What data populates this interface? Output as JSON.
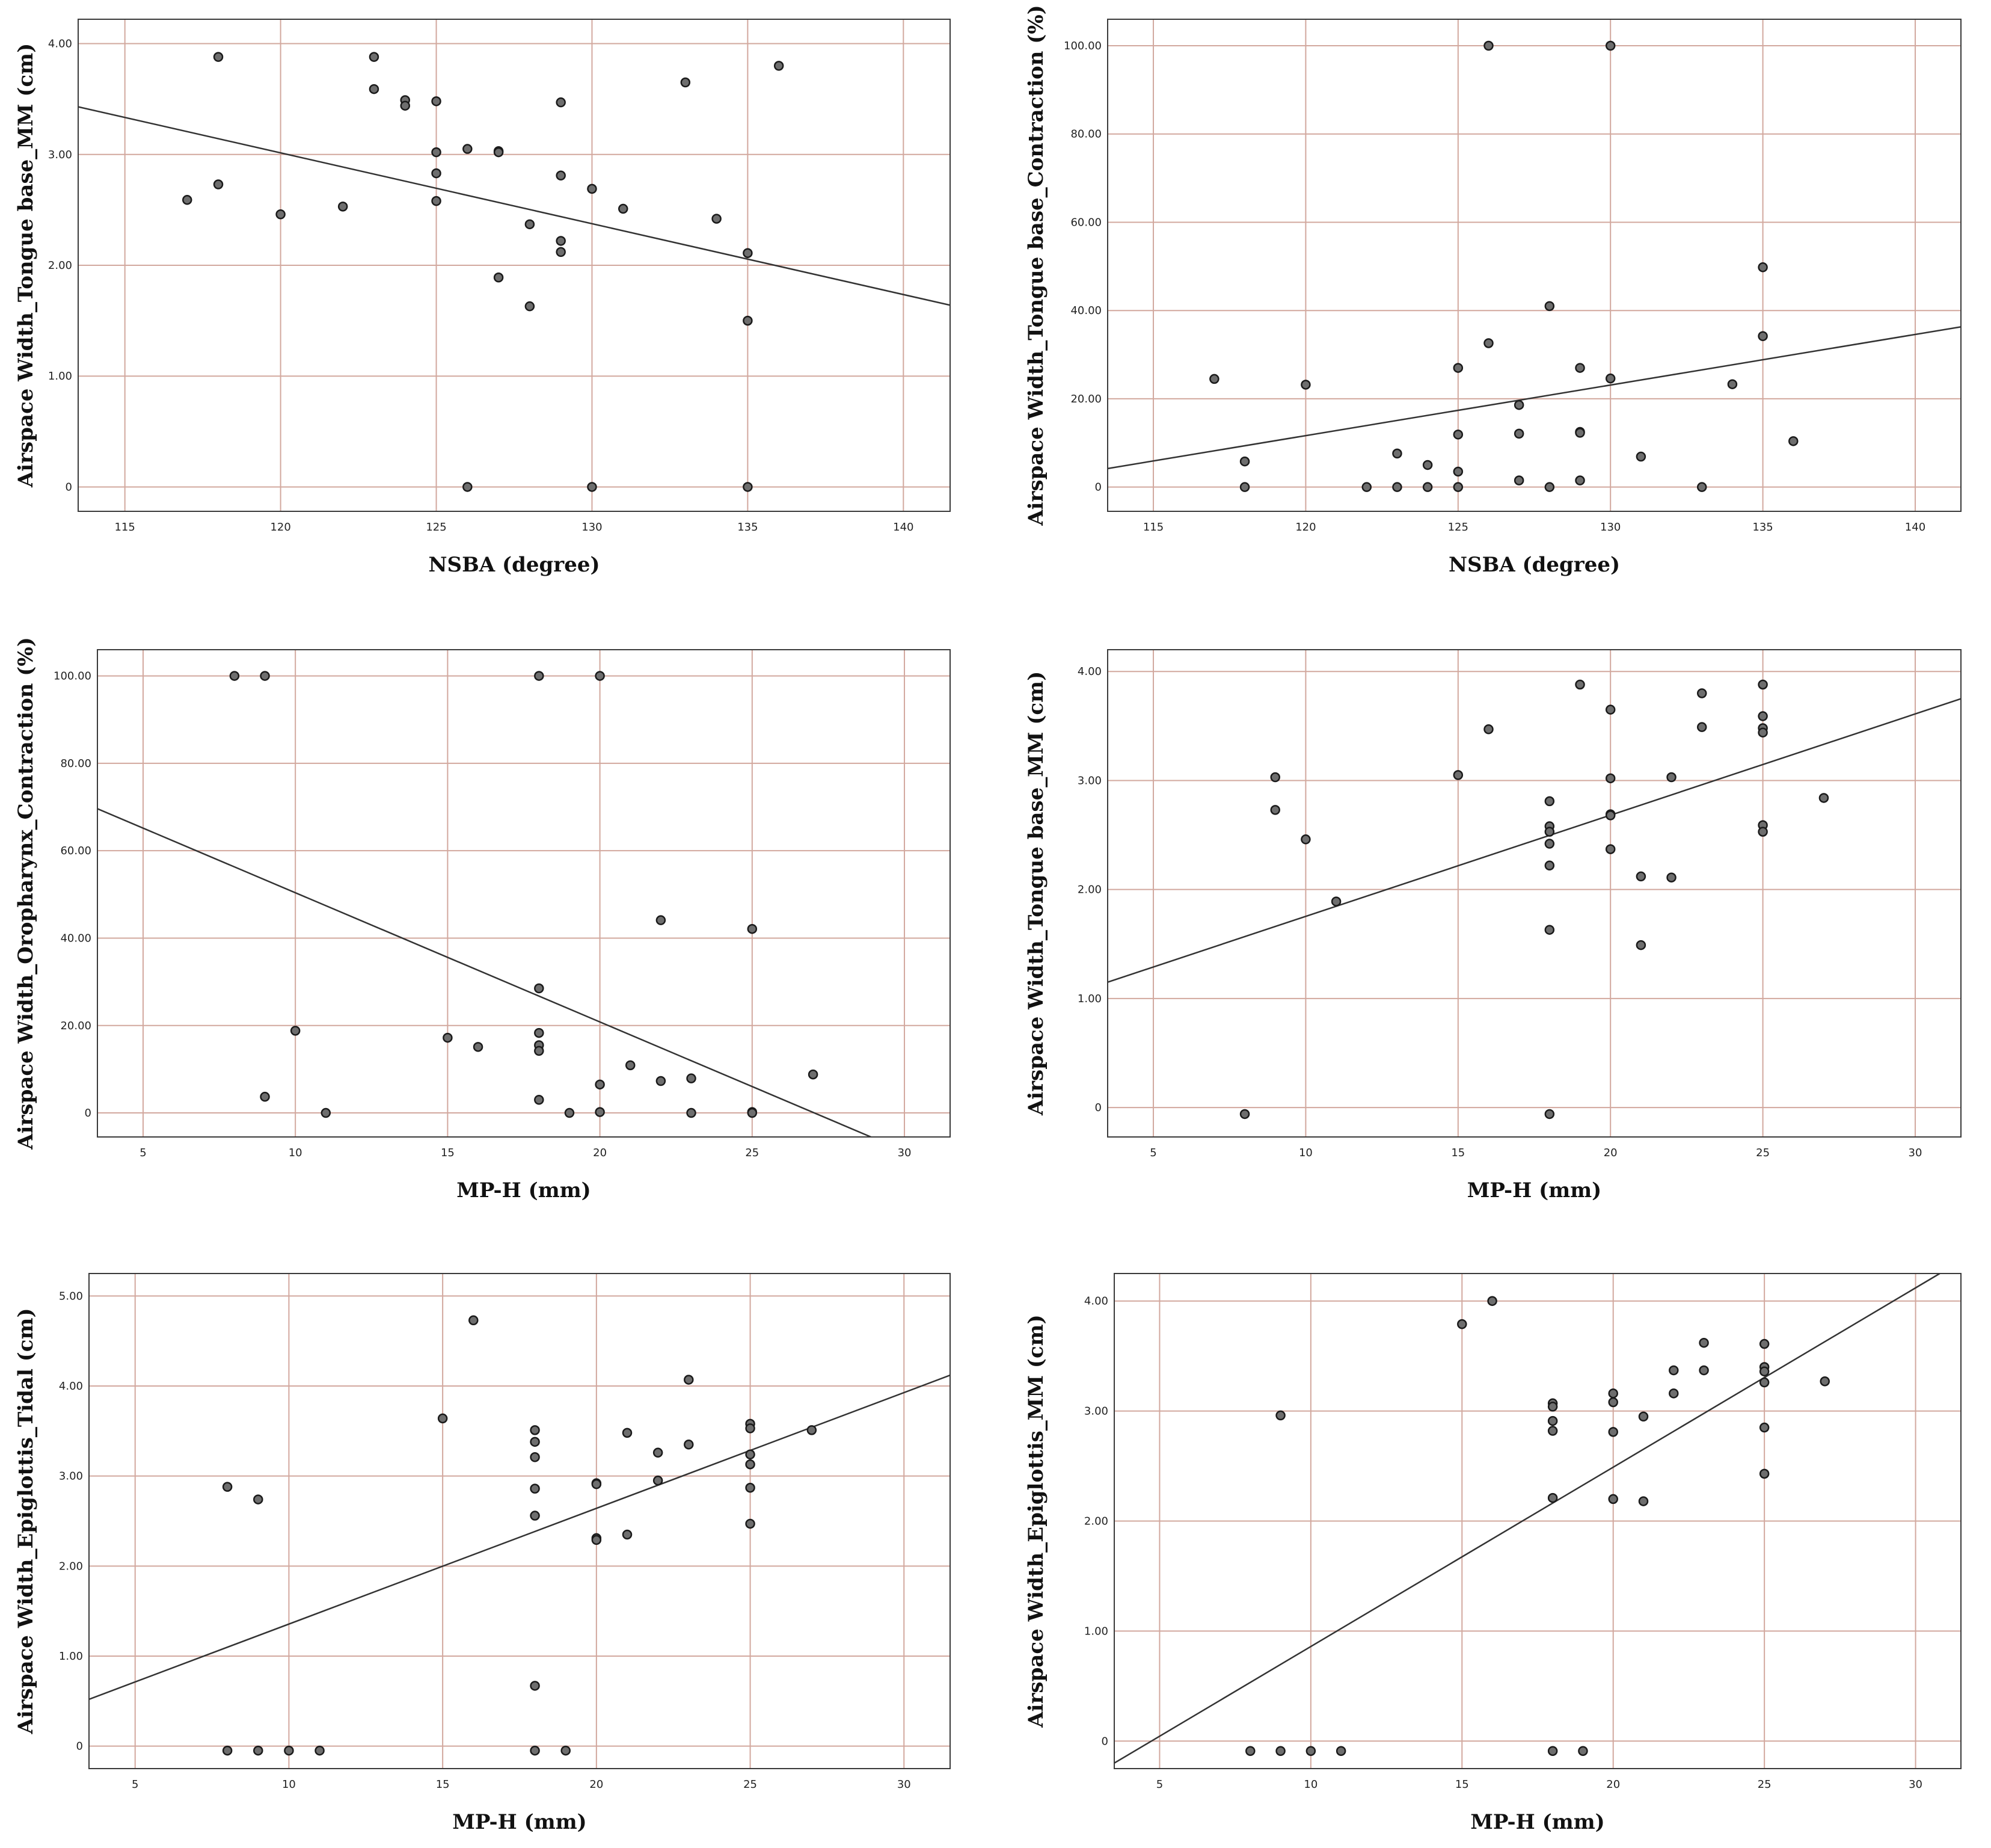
{
  "chart_data": [
    {
      "type": "scatter",
      "xlabel": "NSBA (degree)",
      "ylabel": "Airspace Width_Tongue base_MM (cm)",
      "xlim": [
        113.5,
        141.5
      ],
      "ylim": [
        -0.22,
        4.22
      ],
      "xticks": [
        "115",
        "120",
        "125",
        "130",
        "135",
        "140"
      ],
      "xtick_values": [
        115,
        120,
        125,
        130,
        135,
        140
      ],
      "yticks": [
        "0",
        "1.00",
        "2.00",
        "3.00",
        "4.00"
      ],
      "ytick_values": [
        0,
        1,
        2,
        3,
        4
      ],
      "fit": {
        "x": [
          113.5,
          141.5
        ],
        "y": [
          3.43,
          1.64
        ]
      },
      "points": [
        [
          117,
          2.59
        ],
        [
          118,
          3.88
        ],
        [
          118,
          2.73
        ],
        [
          120,
          2.46
        ],
        [
          122,
          2.53
        ],
        [
          123,
          3.88
        ],
        [
          123,
          3.59
        ],
        [
          124,
          3.49
        ],
        [
          124,
          3.44
        ],
        [
          125,
          3.48
        ],
        [
          125,
          3.02
        ],
        [
          125,
          2.83
        ],
        [
          125,
          2.58
        ],
        [
          126,
          3.05
        ],
        [
          126,
          0
        ],
        [
          127,
          3.03
        ],
        [
          127,
          3.02
        ],
        [
          127,
          1.89
        ],
        [
          128,
          2.37
        ],
        [
          128,
          1.63
        ],
        [
          129,
          3.47
        ],
        [
          129,
          2.81
        ],
        [
          129,
          2.22
        ],
        [
          129,
          2.12
        ],
        [
          130,
          2.69
        ],
        [
          130,
          0
        ],
        [
          131,
          2.51
        ],
        [
          133,
          3.65
        ],
        [
          134,
          2.42
        ],
        [
          135,
          2.11
        ],
        [
          135,
          1.5
        ],
        [
          135,
          0
        ],
        [
          136,
          3.8
        ]
      ]
    },
    {
      "type": "scatter",
      "xlabel": "NSBA (degree)",
      "ylabel": "Airspace Width_Tongue base_Contraction (%)",
      "xlim": [
        113.5,
        141.5
      ],
      "ylim": [
        -5.5,
        106
      ],
      "xticks": [
        "115",
        "120",
        "125",
        "130",
        "135",
        "140"
      ],
      "xtick_values": [
        115,
        120,
        125,
        130,
        135,
        140
      ],
      "yticks": [
        "0",
        "20.00",
        "40.00",
        "60.00",
        "80.00",
        "100.00"
      ],
      "ytick_values": [
        0,
        20,
        40,
        60,
        80,
        100
      ],
      "fit": {
        "x": [
          113.5,
          141.5
        ],
        "y": [
          4.2,
          36.3
        ]
      },
      "points": [
        [
          117,
          24.5
        ],
        [
          118,
          5.8
        ],
        [
          118,
          0
        ],
        [
          120,
          23.2
        ],
        [
          122,
          0
        ],
        [
          123,
          7.6
        ],
        [
          123,
          0
        ],
        [
          124,
          5.0
        ],
        [
          124,
          0
        ],
        [
          125,
          27.0
        ],
        [
          125,
          11.9
        ],
        [
          125,
          3.5
        ],
        [
          125,
          0
        ],
        [
          126,
          32.6
        ],
        [
          126,
          100
        ],
        [
          127,
          18.6
        ],
        [
          127,
          12.1
        ],
        [
          127,
          1.5
        ],
        [
          128,
          41.0
        ],
        [
          128,
          0
        ],
        [
          129,
          27.0
        ],
        [
          129,
          12.5
        ],
        [
          129,
          12.3
        ],
        [
          129,
          1.5
        ],
        [
          130,
          24.6
        ],
        [
          130,
          100
        ],
        [
          131,
          6.9
        ],
        [
          133,
          0
        ],
        [
          134,
          23.3
        ],
        [
          135,
          49.8
        ],
        [
          135,
          34.2
        ],
        [
          136,
          10.4
        ]
      ]
    },
    {
      "type": "scatter",
      "xlabel": "MP-H (mm)",
      "ylabel": "Airspace Width_Oropharynx_Contraction (%)",
      "xlim": [
        3.5,
        31.5
      ],
      "ylim": [
        -5.5,
        106
      ],
      "xticks": [
        "5",
        "10",
        "15",
        "20",
        "25",
        "30"
      ],
      "xtick_values": [
        5,
        10,
        15,
        20,
        25,
        30
      ],
      "yticks": [
        "0",
        "20.00",
        "40.00",
        "60.00",
        "80.00",
        "100.00"
      ],
      "ytick_values": [
        0,
        20,
        40,
        60,
        80,
        100
      ],
      "fit": {
        "x": [
          3.5,
          28.9
        ],
        "y": [
          69.6,
          -5.5
        ]
      },
      "points": [
        [
          8,
          100
        ],
        [
          9,
          100
        ],
        [
          9,
          3.7
        ],
        [
          10,
          18.8
        ],
        [
          11,
          0
        ],
        [
          15,
          17.2
        ],
        [
          16,
          15.1
        ],
        [
          18,
          100
        ],
        [
          18,
          28.5
        ],
        [
          18,
          18.3
        ],
        [
          18,
          15.5
        ],
        [
          18,
          14.2
        ],
        [
          18,
          3.0
        ],
        [
          19,
          0
        ],
        [
          20,
          100
        ],
        [
          20,
          6.5
        ],
        [
          20,
          0.2
        ],
        [
          21,
          10.9
        ],
        [
          22,
          44.1
        ],
        [
          22,
          7.3
        ],
        [
          23,
          7.9
        ],
        [
          23,
          0
        ],
        [
          25,
          42.1
        ],
        [
          25,
          0.2
        ],
        [
          25,
          0
        ],
        [
          27,
          8.8
        ]
      ]
    },
    {
      "type": "scatter",
      "xlabel": "MP-H (mm)",
      "ylabel": "Airspace Width_Tongue base_MM (cm)",
      "xlim": [
        3.5,
        31.5
      ],
      "ylim": [
        -0.27,
        4.2
      ],
      "xticks": [
        "5",
        "10",
        "15",
        "20",
        "25",
        "30"
      ],
      "xtick_values": [
        5,
        10,
        15,
        20,
        25,
        30
      ],
      "yticks": [
        "0",
        "1.00",
        "2.00",
        "3.00",
        "4.00"
      ],
      "ytick_values": [
        0,
        1,
        2,
        3,
        4
      ],
      "fit": {
        "x": [
          3.5,
          31.5
        ],
        "y": [
          1.15,
          3.75
        ]
      },
      "points": [
        [
          8,
          -0.06
        ],
        [
          9,
          3.03
        ],
        [
          9,
          2.73
        ],
        [
          10,
          2.46
        ],
        [
          11,
          1.89
        ],
        [
          15,
          3.05
        ],
        [
          16,
          3.47
        ],
        [
          18,
          2.81
        ],
        [
          18,
          2.58
        ],
        [
          18,
          2.53
        ],
        [
          18,
          2.42
        ],
        [
          18,
          2.22
        ],
        [
          18,
          1.63
        ],
        [
          18,
          -0.06
        ],
        [
          19,
          3.88
        ],
        [
          20,
          3.65
        ],
        [
          20,
          3.02
        ],
        [
          20,
          2.69
        ],
        [
          20,
          2.68
        ],
        [
          20,
          2.37
        ],
        [
          21,
          2.12
        ],
        [
          21,
          1.49
        ],
        [
          22,
          3.03
        ],
        [
          22,
          2.11
        ],
        [
          23,
          3.8
        ],
        [
          23,
          3.49
        ],
        [
          25,
          3.88
        ],
        [
          25,
          3.59
        ],
        [
          25,
          3.48
        ],
        [
          25,
          3.44
        ],
        [
          25,
          2.59
        ],
        [
          25,
          2.53
        ],
        [
          27,
          2.84
        ]
      ]
    },
    {
      "type": "scatter",
      "xlabel": "MP-H (mm)",
      "ylabel": "Airspace Width_Epiglottis_Tidal (cm)",
      "xlim": [
        3.5,
        31.5
      ],
      "ylim": [
        -0.25,
        5.25
      ],
      "xticks": [
        "5",
        "10",
        "15",
        "20",
        "25",
        "30"
      ],
      "xtick_values": [
        5,
        10,
        15,
        20,
        25,
        30
      ],
      "yticks": [
        "0",
        "1.00",
        "2.00",
        "3.00",
        "4.00",
        "5.00"
      ],
      "ytick_values": [
        0,
        1,
        2,
        3,
        4,
        5
      ],
      "fit": {
        "x": [
          3.5,
          31.5
        ],
        "y": [
          0.52,
          4.12
        ]
      },
      "points": [
        [
          8,
          2.88
        ],
        [
          8,
          -0.05
        ],
        [
          9,
          2.74
        ],
        [
          9,
          -0.05
        ],
        [
          10,
          -0.05
        ],
        [
          11,
          -0.05
        ],
        [
          15,
          3.64
        ],
        [
          16,
          4.73
        ],
        [
          18,
          3.51
        ],
        [
          18,
          3.38
        ],
        [
          18,
          3.21
        ],
        [
          18,
          2.86
        ],
        [
          18,
          2.56
        ],
        [
          18,
          0.67
        ],
        [
          18,
          -0.05
        ],
        [
          19,
          -0.05
        ],
        [
          20,
          2.92
        ],
        [
          20,
          2.91
        ],
        [
          20,
          2.31
        ],
        [
          20,
          2.29
        ],
        [
          21,
          3.48
        ],
        [
          21,
          2.35
        ],
        [
          22,
          3.26
        ],
        [
          22,
          2.95
        ],
        [
          23,
          4.07
        ],
        [
          23,
          3.35
        ],
        [
          25,
          3.58
        ],
        [
          25,
          3.53
        ],
        [
          25,
          3.24
        ],
        [
          25,
          3.13
        ],
        [
          25,
          2.87
        ],
        [
          25,
          2.47
        ],
        [
          27,
          3.51
        ]
      ]
    },
    {
      "type": "scatter",
      "xlabel": "MP-H (mm)",
      "ylabel": "Airspace Width_Epiglottis_MM (cm)",
      "xlim": [
        3.5,
        31.5
      ],
      "ylim": [
        -0.25,
        4.25
      ],
      "xticks": [
        "5",
        "10",
        "15",
        "20",
        "25",
        "30"
      ],
      "xtick_values": [
        5,
        10,
        15,
        20,
        25,
        30
      ],
      "yticks": [
        "0",
        "1.00",
        "2.00",
        "3.00",
        "4.00"
      ],
      "ytick_values": [
        0,
        1,
        2,
        3,
        4
      ],
      "fit": {
        "x": [
          3.5,
          30.8
        ],
        "y": [
          -0.2,
          4.25
        ]
      },
      "points": [
        [
          8,
          -0.09
        ],
        [
          9,
          2.96
        ],
        [
          9,
          -0.09
        ],
        [
          10,
          -0.09
        ],
        [
          11,
          -0.09
        ],
        [
          15,
          3.79
        ],
        [
          16,
          4.0
        ],
        [
          18,
          3.07
        ],
        [
          18,
          3.04
        ],
        [
          18,
          2.91
        ],
        [
          18,
          2.82
        ],
        [
          18,
          2.21
        ],
        [
          18,
          -0.09
        ],
        [
          19,
          -0.09
        ],
        [
          20,
          3.16
        ],
        [
          20,
          3.08
        ],
        [
          20,
          2.81
        ],
        [
          20,
          2.2
        ],
        [
          21,
          2.95
        ],
        [
          21,
          2.18
        ],
        [
          22,
          3.37
        ],
        [
          22,
          3.16
        ],
        [
          23,
          3.62
        ],
        [
          23,
          3.37
        ],
        [
          25,
          3.61
        ],
        [
          25,
          3.4
        ],
        [
          25,
          3.36
        ],
        [
          25,
          3.26
        ],
        [
          25,
          2.85
        ],
        [
          25,
          2.43
        ],
        [
          27,
          3.27
        ]
      ]
    }
  ]
}
